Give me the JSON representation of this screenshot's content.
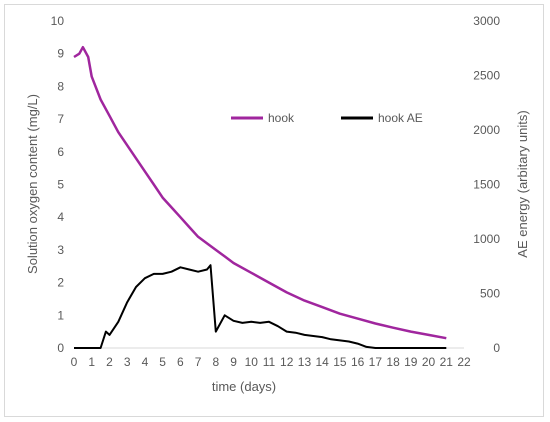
{
  "chart_data": {
    "type": "line",
    "title": "",
    "xlabel": "time (days)",
    "ylabel_left": "Solution oxygen content (mg/L)",
    "ylabel_right": "AE energy (arbitary units)",
    "xlim": [
      0,
      22
    ],
    "ylim_left": [
      0,
      10
    ],
    "ylim_right": [
      0,
      3000
    ],
    "x_ticks": [
      "0",
      "1",
      "2",
      "3",
      "4",
      "5",
      "6",
      "7",
      "8",
      "9",
      "10",
      "11",
      "12",
      "13",
      "14",
      "15",
      "16",
      "17",
      "18",
      "19",
      "20",
      "21",
      "22"
    ],
    "y_left_ticks": [
      "0",
      "1",
      "2",
      "3",
      "4",
      "5",
      "6",
      "7",
      "8",
      "9",
      "10"
    ],
    "y_right_ticks": [
      "0",
      "500",
      "1000",
      "1500",
      "2000",
      "2500",
      "3000"
    ],
    "grid": false,
    "legend_position": "upper-right-inside",
    "series": [
      {
        "name": "hook",
        "axis": "left",
        "color": "#a0269e",
        "x": [
          0,
          0.3,
          0.5,
          0.8,
          1,
          1.5,
          2,
          2.5,
          3,
          3.5,
          4,
          4.5,
          5,
          5.5,
          6,
          6.5,
          7,
          7.5,
          8,
          8.5,
          9,
          10,
          11,
          12,
          13,
          14,
          15,
          16,
          17,
          18,
          19,
          20,
          21
        ],
        "y": [
          8.9,
          9.0,
          9.2,
          8.9,
          8.3,
          7.6,
          7.1,
          6.6,
          6.2,
          5.8,
          5.4,
          5.0,
          4.6,
          4.3,
          4.0,
          3.7,
          3.4,
          3.2,
          3.0,
          2.8,
          2.6,
          2.3,
          2.0,
          1.7,
          1.45,
          1.25,
          1.05,
          0.9,
          0.75,
          0.62,
          0.5,
          0.4,
          0.3
        ]
      },
      {
        "name": "hook AE",
        "axis": "right",
        "color": "#000000",
        "x": [
          0,
          1.5,
          1.8,
          2,
          2.5,
          3,
          3.5,
          4,
          4.5,
          5,
          5.5,
          6,
          6.5,
          7,
          7.5,
          7.7,
          8,
          8.5,
          9,
          9.5,
          10,
          10.5,
          11,
          11.5,
          12,
          12.5,
          13,
          13.5,
          14,
          14.5,
          15,
          15.5,
          16,
          16.5,
          17,
          21
        ],
        "y": [
          0,
          0,
          150,
          120,
          240,
          420,
          560,
          640,
          680,
          680,
          700,
          740,
          720,
          700,
          720,
          760,
          150,
          300,
          250,
          230,
          240,
          230,
          240,
          200,
          150,
          140,
          120,
          110,
          100,
          80,
          70,
          60,
          40,
          10,
          0,
          0
        ]
      }
    ]
  }
}
